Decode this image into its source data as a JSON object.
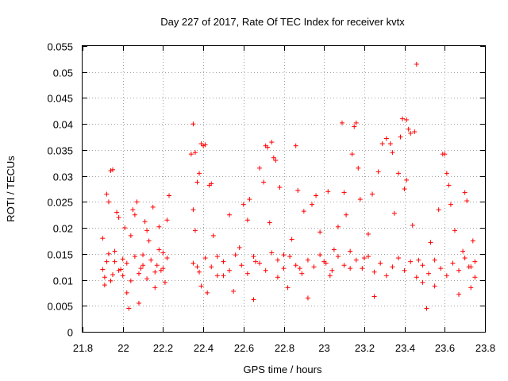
{
  "chart_data": {
    "type": "scatter",
    "title": "Day 227 of 2017, Rate Of TEC Index for receiver kvtx",
    "xlabel": "GPS time / hours",
    "ylabel": "ROTI / TECUs",
    "xlim": [
      21.8,
      23.8
    ],
    "ylim": [
      0,
      0.055
    ],
    "xticks": [
      "21.8",
      "22",
      "22.2",
      "22.4",
      "22.6",
      "22.8",
      "23",
      "23.2",
      "23.4",
      "23.6",
      "23.8"
    ],
    "yticks": [
      "0",
      "0.005",
      "0.01",
      "0.015",
      "0.02",
      "0.025",
      "0.03",
      "0.035",
      "0.04",
      "0.045",
      "0.05",
      "0.055"
    ],
    "grid": true,
    "marker": "+",
    "color": "#ff0000",
    "points": [
      [
        21.9,
        0.018
      ],
      [
        21.9,
        0.012
      ],
      [
        21.91,
        0.009
      ],
      [
        21.92,
        0.0265
      ],
      [
        21.93,
        0.025
      ],
      [
        21.94,
        0.031
      ],
      [
        21.95,
        0.0312
      ],
      [
        21.93,
        0.015
      ],
      [
        21.95,
        0.011
      ],
      [
        21.96,
        0.0135
      ],
      [
        21.97,
        0.023
      ],
      [
        21.98,
        0.022
      ],
      [
        21.99,
        0.012
      ],
      [
        22.0,
        0.014
      ],
      [
        22.01,
        0.02
      ],
      [
        22.02,
        0.0075
      ],
      [
        22.03,
        0.0045
      ],
      [
        22.04,
        0.0185
      ],
      [
        22.05,
        0.0235
      ],
      [
        22.06,
        0.0225
      ],
      [
        22.07,
        0.025
      ],
      [
        22.08,
        0.0055
      ],
      [
        22.09,
        0.0122
      ],
      [
        22.1,
        0.0148
      ],
      [
        22.11,
        0.0212
      ],
      [
        22.12,
        0.0195
      ],
      [
        22.13,
        0.0175
      ],
      [
        22.15,
        0.024
      ],
      [
        22.16,
        0.0085
      ],
      [
        22.17,
        0.0128
      ],
      [
        22.18,
        0.0202
      ],
      [
        22.2,
        0.0152
      ],
      [
        22.21,
        0.0095
      ],
      [
        22.22,
        0.0215
      ],
      [
        22.23,
        0.0262
      ],
      [
        22.19,
        0.0118
      ],
      [
        22.34,
        0.0342
      ],
      [
        22.35,
        0.04
      ],
      [
        22.36,
        0.0345
      ],
      [
        22.37,
        0.0288
      ],
      [
        22.38,
        0.0305
      ],
      [
        22.39,
        0.0362
      ],
      [
        22.4,
        0.0358
      ],
      [
        22.41,
        0.036
      ],
      [
        22.43,
        0.0282
      ],
      [
        22.44,
        0.0285
      ],
      [
        22.35,
        0.0235
      ],
      [
        22.36,
        0.0195
      ],
      [
        22.37,
        0.0125
      ],
      [
        22.39,
        0.0088
      ],
      [
        22.42,
        0.0075
      ],
      [
        22.45,
        0.0185
      ],
      [
        22.47,
        0.0145
      ],
      [
        22.5,
        0.0108
      ],
      [
        22.53,
        0.0225
      ],
      [
        22.55,
        0.0078
      ],
      [
        22.58,
        0.0162
      ],
      [
        22.6,
        0.0245
      ],
      [
        22.62,
        0.0215
      ],
      [
        22.63,
        0.0255
      ],
      [
        22.65,
        0.0062
      ],
      [
        22.66,
        0.0135
      ],
      [
        22.68,
        0.0315
      ],
      [
        22.7,
        0.0288
      ],
      [
        22.71,
        0.0358
      ],
      [
        22.72,
        0.0355
      ],
      [
        22.74,
        0.0365
      ],
      [
        22.75,
        0.0335
      ],
      [
        22.76,
        0.033
      ],
      [
        22.73,
        0.021
      ],
      [
        22.77,
        0.0105
      ],
      [
        22.78,
        0.0278
      ],
      [
        22.8,
        0.0148
      ],
      [
        22.82,
        0.0085
      ],
      [
        22.84,
        0.0178
      ],
      [
        22.86,
        0.0358
      ],
      [
        22.87,
        0.0272
      ],
      [
        22.88,
        0.0122
      ],
      [
        22.9,
        0.0232
      ],
      [
        22.92,
        0.0065
      ],
      [
        22.94,
        0.0245
      ],
      [
        22.96,
        0.0262
      ],
      [
        22.98,
        0.0192
      ],
      [
        23.0,
        0.0135
      ],
      [
        23.02,
        0.027
      ],
      [
        23.03,
        0.0108
      ],
      [
        23.05,
        0.0158
      ],
      [
        23.07,
        0.0202
      ],
      [
        23.09,
        0.0402
      ],
      [
        23.1,
        0.0268
      ],
      [
        23.11,
        0.0225
      ],
      [
        23.13,
        0.0122
      ],
      [
        23.14,
        0.0342
      ],
      [
        23.15,
        0.0395
      ],
      [
        23.16,
        0.0402
      ],
      [
        23.17,
        0.0315
      ],
      [
        23.18,
        0.0255
      ],
      [
        23.2,
        0.0142
      ],
      [
        23.22,
        0.0188
      ],
      [
        23.24,
        0.0265
      ],
      [
        23.25,
        0.0068
      ],
      [
        23.27,
        0.0308
      ],
      [
        23.29,
        0.0362
      ],
      [
        23.31,
        0.0372
      ],
      [
        23.33,
        0.0362
      ],
      [
        23.34,
        0.0345
      ],
      [
        23.35,
        0.0228
      ],
      [
        23.37,
        0.0305
      ],
      [
        23.38,
        0.0375
      ],
      [
        23.39,
        0.041
      ],
      [
        23.41,
        0.0408
      ],
      [
        23.42,
        0.039
      ],
      [
        23.43,
        0.0382
      ],
      [
        23.45,
        0.0385
      ],
      [
        23.46,
        0.0515
      ],
      [
        23.4,
        0.0275
      ],
      [
        23.41,
        0.0292
      ],
      [
        23.44,
        0.0205
      ],
      [
        23.47,
        0.0138
      ],
      [
        23.49,
        0.0095
      ],
      [
        23.51,
        0.0045
      ],
      [
        23.53,
        0.0172
      ],
      [
        23.55,
        0.0088
      ],
      [
        23.57,
        0.0235
      ],
      [
        23.59,
        0.0342
      ],
      [
        23.6,
        0.0342
      ],
      [
        23.61,
        0.0305
      ],
      [
        23.62,
        0.0282
      ],
      [
        23.63,
        0.0245
      ],
      [
        23.65,
        0.0195
      ],
      [
        23.67,
        0.0072
      ],
      [
        23.69,
        0.0155
      ],
      [
        23.7,
        0.0268
      ],
      [
        23.71,
        0.0252
      ],
      [
        23.72,
        0.0125
      ],
      [
        23.74,
        0.0175
      ],
      [
        23.75,
        0.0105
      ],
      [
        23.73,
        0.0085
      ],
      [
        21.91,
        0.0105
      ],
      [
        21.92,
        0.0135
      ],
      [
        21.94,
        0.0098
      ],
      [
        21.96,
        0.0155
      ],
      [
        21.98,
        0.0118
      ],
      [
        22.0,
        0.0108
      ],
      [
        22.02,
        0.0132
      ],
      [
        22.04,
        0.0098
      ],
      [
        22.06,
        0.0145
      ],
      [
        22.08,
        0.0112
      ],
      [
        22.1,
        0.0128
      ],
      [
        22.12,
        0.0102
      ],
      [
        22.14,
        0.0138
      ],
      [
        22.16,
        0.0115
      ],
      [
        22.18,
        0.0158
      ],
      [
        22.2,
        0.0122
      ],
      [
        22.22,
        0.0142
      ],
      [
        22.35,
        0.0132
      ],
      [
        22.38,
        0.0115
      ],
      [
        22.41,
        0.0142
      ],
      [
        22.44,
        0.0125
      ],
      [
        22.47,
        0.0108
      ],
      [
        22.5,
        0.0135
      ],
      [
        22.53,
        0.0118
      ],
      [
        22.56,
        0.0148
      ],
      [
        22.59,
        0.0128
      ],
      [
        22.62,
        0.0112
      ],
      [
        22.65,
        0.0145
      ],
      [
        22.68,
        0.0132
      ],
      [
        22.71,
        0.0118
      ],
      [
        22.74,
        0.0152
      ],
      [
        22.77,
        0.0138
      ],
      [
        22.8,
        0.0122
      ],
      [
        22.83,
        0.0145
      ],
      [
        22.86,
        0.0128
      ],
      [
        22.89,
        0.0112
      ],
      [
        22.92,
        0.0138
      ],
      [
        22.95,
        0.0125
      ],
      [
        22.98,
        0.0148
      ],
      [
        23.01,
        0.0132
      ],
      [
        23.04,
        0.0118
      ],
      [
        23.07,
        0.0145
      ],
      [
        23.1,
        0.0128
      ],
      [
        23.13,
        0.0155
      ],
      [
        23.16,
        0.0138
      ],
      [
        23.19,
        0.0122
      ],
      [
        23.22,
        0.0145
      ],
      [
        23.25,
        0.0115
      ],
      [
        23.28,
        0.0132
      ],
      [
        23.31,
        0.0108
      ],
      [
        23.34,
        0.0125
      ],
      [
        23.37,
        0.0142
      ],
      [
        23.4,
        0.0118
      ],
      [
        23.43,
        0.0135
      ],
      [
        23.46,
        0.0105
      ],
      [
        23.49,
        0.0128
      ],
      [
        23.52,
        0.0112
      ],
      [
        23.55,
        0.0138
      ],
      [
        23.58,
        0.0122
      ],
      [
        23.61,
        0.0108
      ],
      [
        23.64,
        0.0132
      ],
      [
        23.67,
        0.0118
      ],
      [
        23.7,
        0.0142
      ],
      [
        23.73,
        0.0125
      ],
      [
        23.75,
        0.0135
      ]
    ]
  }
}
